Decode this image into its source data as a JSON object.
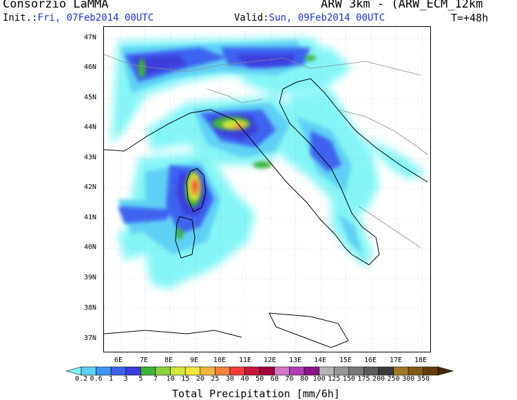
{
  "header": {
    "organization": "Consorzio LaMMA",
    "model": "ARW 3km - (ARW_ECM_12km",
    "init_label": "Init.:",
    "init_value": "Fri, 07Feb2014 00UTC",
    "valid_label": "Valid:",
    "valid_value": "Sun, 09Feb2014 00UTC",
    "timestep": "T=+48h"
  },
  "map": {
    "lat_labels": [
      "47N",
      "46N",
      "45N",
      "44N",
      "43N",
      "42N",
      "41N",
      "40N",
      "39N",
      "38N",
      "37N"
    ],
    "lon_labels": [
      "6E",
      "7E",
      "8E",
      "9E",
      "10E",
      "11E",
      "12E",
      "13E",
      "14E",
      "15E",
      "16E",
      "17E",
      "18E"
    ],
    "precip_level_colors": [
      "#7ff5f5",
      "#5fd0f5",
      "#3c96f5",
      "#3c64f0",
      "#3c3cdc",
      "#3cb43c",
      "#8cd23c",
      "#d2e63c",
      "#f5e63c",
      "#f5b43c",
      "#f5823c",
      "#f53c3c",
      "#c8143c",
      "#a0003c",
      "#d278c8",
      "#b43cb4",
      "#8c148c",
      "#b4b4b4",
      "#969696",
      "#787878",
      "#5a5a5a",
      "#3c3c3c",
      "#a07828",
      "#825a14",
      "#643c0a",
      "#462800"
    ]
  },
  "legend": {
    "levels": [
      "0.2",
      "0.6",
      "1",
      "3",
      "5",
      "7",
      "10",
      "15",
      "20",
      "25",
      "30",
      "40",
      "50",
      "60",
      "70",
      "80",
      "100",
      "125",
      "150",
      "175",
      "200",
      "250",
      "300",
      "350"
    ],
    "title": "Total Precipitation [mm/6h]"
  }
}
